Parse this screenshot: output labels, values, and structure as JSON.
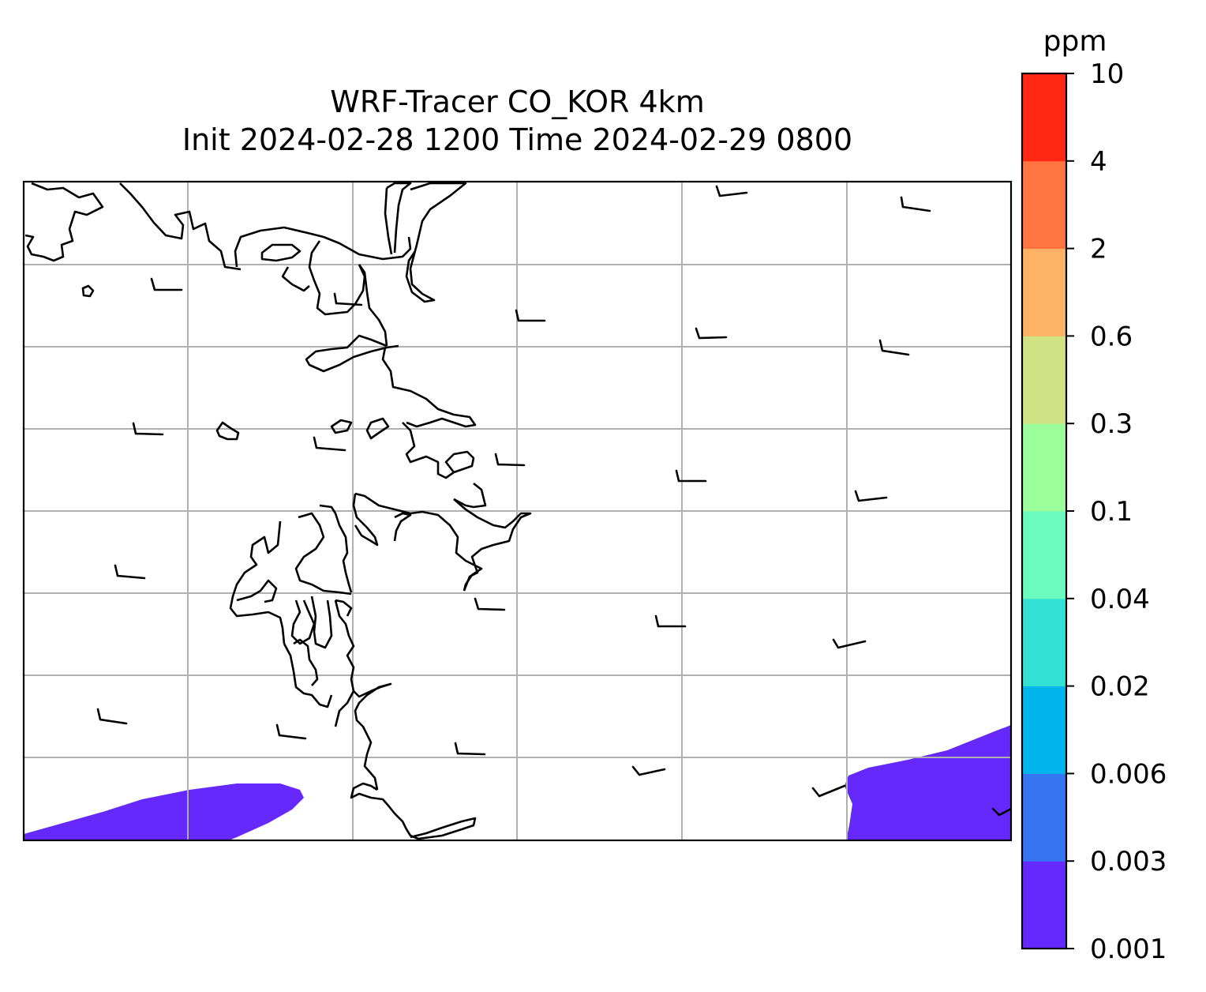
{
  "title": {
    "line1": "WRF-Tracer CO_KOR 4km",
    "line2": "Init 2024-02-28 1200 Time 2024-02-29 0800"
  },
  "colorbar": {
    "unit": "ppm",
    "ticks": [
      "0.001",
      "0.003",
      "0.006",
      "0.02",
      "0.04",
      "0.1",
      "0.3",
      "0.6",
      "2",
      "4",
      "10"
    ],
    "colors": [
      "#6629fd",
      "#3574f3",
      "#02b5ec",
      "#33e1d4",
      "#69fcbe",
      "#9cfd9b",
      "#d0e284",
      "#fdb365",
      "#ff7440",
      "#ff2814"
    ]
  },
  "map": {
    "grid": "on",
    "concentration_color": "#6629fd",
    "coastline_color": "#000000",
    "gridline_color": "#b0b0b0"
  }
}
